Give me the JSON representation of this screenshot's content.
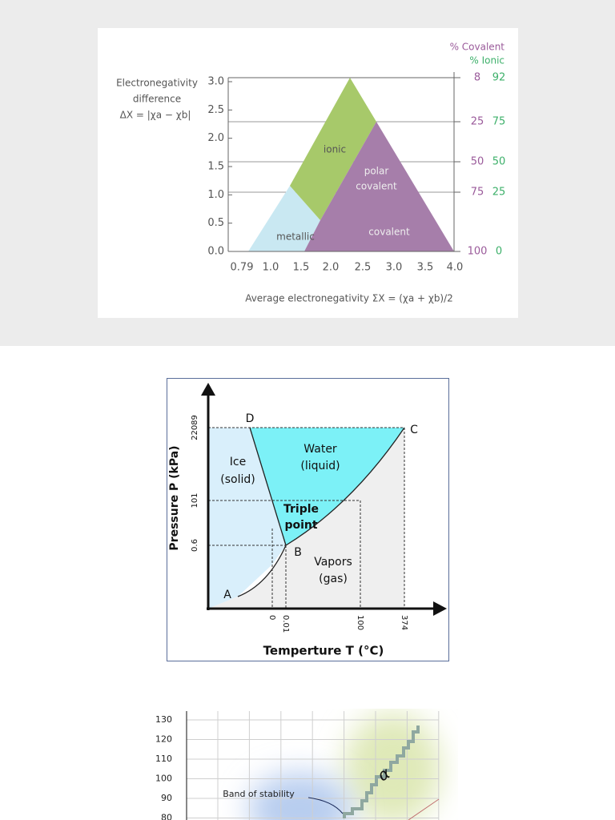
{
  "figure1": {
    "right_axis_titles": [
      "% Covalent",
      "% Ionic"
    ],
    "y_axis_title": [
      "Electronegativity",
      "difference",
      "ΔX = |χa − χb|"
    ],
    "y_ticks": [
      "3.0",
      "2.5",
      "2.0",
      "1.5",
      "1.0",
      "0.5",
      "0.0"
    ],
    "covalent_ticks": [
      "8",
      "25",
      "50",
      "75",
      "100"
    ],
    "ionic_ticks": [
      "92",
      "75",
      "50",
      "25",
      "0"
    ],
    "regions": {
      "ionic": "ionic",
      "polar_covalent": [
        "polar",
        "covalent"
      ],
      "metallic": "metallic",
      "covalent": "covalent"
    },
    "x_ticks": [
      "0.79",
      "1.0",
      "1.5",
      "2.0",
      "2.5",
      "3.0",
      "3.5",
      "4.0"
    ],
    "x_axis_title": "Average electronegativity ΣX = (χa + χb)/2"
  },
  "figure2": {
    "points": {
      "D": "D",
      "C": "C",
      "B": "B",
      "A": "A"
    },
    "regions": {
      "ice": [
        "Ice",
        "(solid)"
      ],
      "water": [
        "Water",
        "(liquid)"
      ],
      "triple": [
        "Triple",
        "point"
      ],
      "vapors": [
        "Vapors",
        "(gas)"
      ]
    },
    "y_axis_title": "Pressure P (kPa)",
    "y_ticks": [
      "22089",
      "101",
      "0.6"
    ],
    "x_ticks": [
      "0",
      "0.01",
      "100",
      "374"
    ],
    "x_axis_title": "Temperture T (°C)"
  },
  "figure3": {
    "y_ticks": [
      "130",
      "120",
      "110",
      "100",
      "90",
      "80"
    ],
    "annotation": "Band of stability",
    "alpha": "α"
  }
}
